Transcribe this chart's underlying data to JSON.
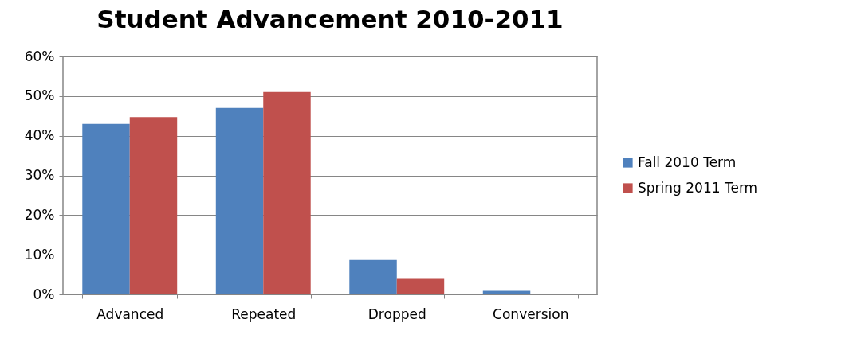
{
  "chart_data": {
    "type": "bar",
    "title": "Student Advancement 2010-2011",
    "categories": [
      "Advanced",
      "Repeated",
      "Dropped",
      "Conversion"
    ],
    "series": [
      {
        "name": "Fall 2010 Term",
        "color": "#4f81bd",
        "values": [
          43,
          47,
          8.7,
          0.9
        ]
      },
      {
        "name": "Spring 2011 Term",
        "color": "#c0504d",
        "values": [
          44.7,
          51,
          3.9,
          0
        ]
      }
    ],
    "ylim": [
      0,
      60
    ],
    "yticks": [
      {
        "value": 0,
        "label": "0%"
      },
      {
        "value": 10,
        "label": "10%"
      },
      {
        "value": 20,
        "label": "20%"
      },
      {
        "value": 30,
        "label": "30%"
      },
      {
        "value": 40,
        "label": "40%"
      },
      {
        "value": 50,
        "label": "50%"
      },
      {
        "value": 60,
        "label": "60%"
      }
    ],
    "grid": "y",
    "legend": "right"
  }
}
